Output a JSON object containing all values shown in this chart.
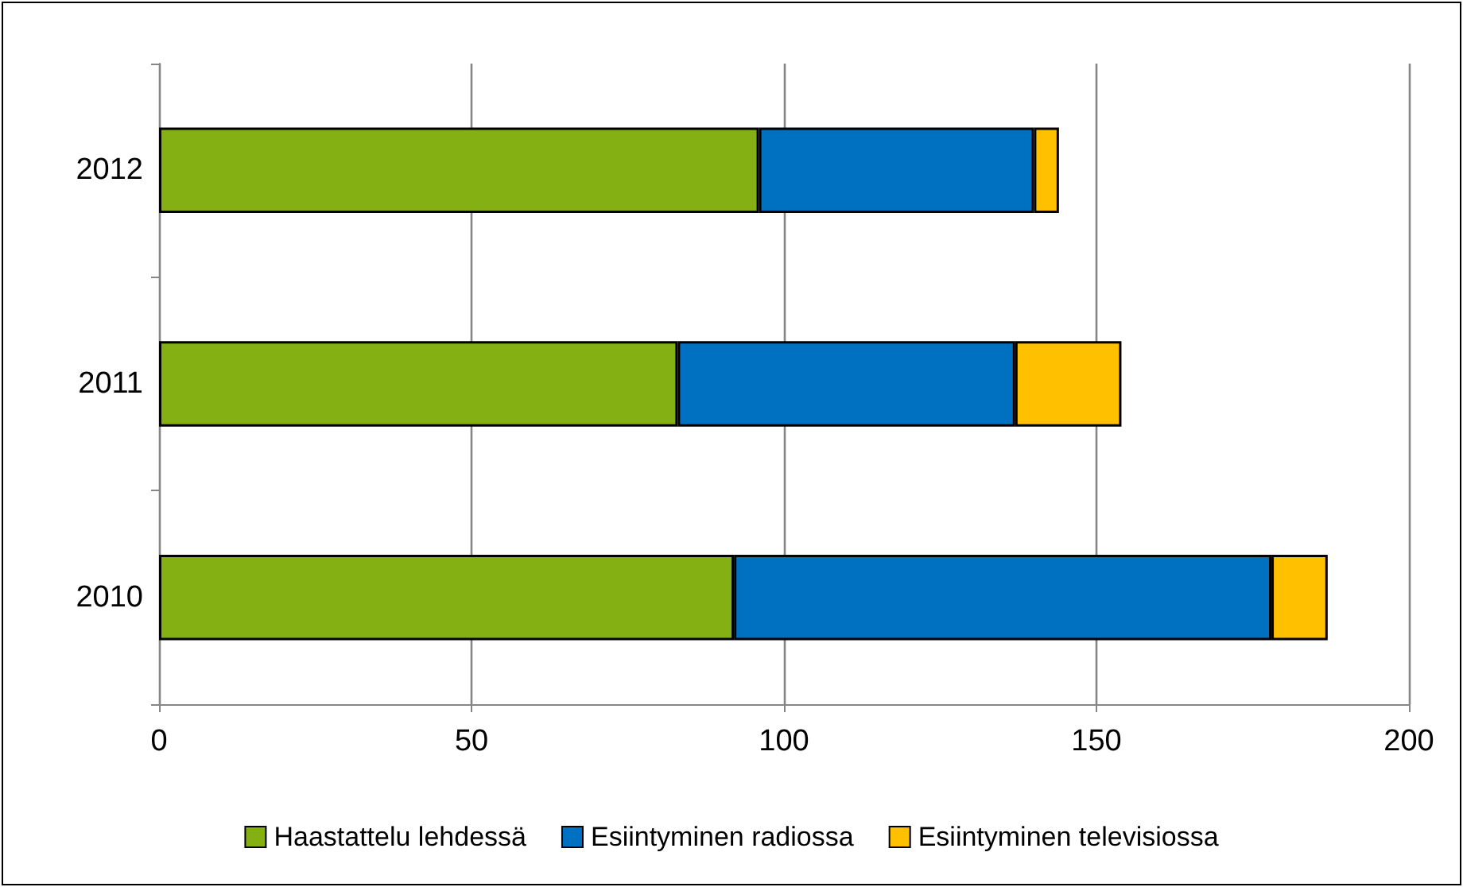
{
  "chart_data": {
    "type": "bar",
    "orientation": "horizontal",
    "stacked": true,
    "categories": [
      "2012",
      "2011",
      "2010"
    ],
    "series": [
      {
        "name": "Haastattelu lehdessä",
        "color": "#84b014",
        "values": [
          96,
          83,
          92
        ]
      },
      {
        "name": "Esiintyminen radiossa",
        "color": "#0070c0",
        "values": [
          44,
          54,
          86
        ]
      },
      {
        "name": "Esiintyminen televisiossa",
        "color": "#ffc000",
        "values": [
          4,
          17,
          9
        ]
      }
    ],
    "xlim": [
      0,
      200
    ],
    "xticks": [
      0,
      50,
      100,
      150,
      200
    ],
    "grid": "x",
    "legend": "bottom"
  }
}
